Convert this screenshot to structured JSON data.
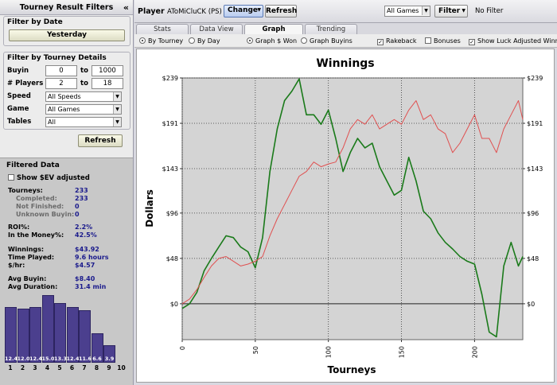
{
  "left_panel": {
    "title": "Tourney Result Filters",
    "filter_by_date": {
      "title": "Filter by Date",
      "button": "Yesterday"
    },
    "filter_by_tourney": {
      "title": "Filter by Tourney Details",
      "buyin": {
        "label": "Buyin",
        "min": "0",
        "to": "to",
        "max": "1000"
      },
      "players": {
        "label": "# Players",
        "min": "2",
        "to": "to",
        "max": "18"
      },
      "speed": {
        "label": "Speed",
        "value": "All Speeds"
      },
      "game": {
        "label": "Game",
        "value": "All Games"
      },
      "tables": {
        "label": "Tables",
        "value": "All"
      }
    },
    "refresh": "Refresh",
    "filtered_data": {
      "title": "Filtered Data",
      "show_ev": "Show $EV adjusted",
      "stats": [
        {
          "label": "Tourneys:",
          "value": "233",
          "sub": false
        },
        {
          "label": "Completed:",
          "value": "233",
          "sub": true
        },
        {
          "label": "Not Finished:",
          "value": "0",
          "sub": true
        },
        {
          "label": "Unknown Buyin:",
          "value": "0",
          "sub": true
        },
        {
          "label": "ROI%:",
          "value": "2.2%",
          "sub": false
        },
        {
          "label": "In the Money%:",
          "value": "42.5%",
          "sub": false
        },
        {
          "label": "Winnings:",
          "value": "$43.92",
          "sub": false
        },
        {
          "label": "Time Played:",
          "value": "9.6  hours",
          "sub": false
        },
        {
          "label": "$/hr:",
          "value": "$4.57",
          "sub": false
        },
        {
          "label": "Avg Buyin:",
          "value": "$8.40",
          "sub": false
        },
        {
          "label": "Avg Duration:",
          "value": "31.4  min",
          "sub": false
        }
      ],
      "histogram": {
        "labels": [
          "1",
          "2",
          "3",
          "4",
          "5",
          "6",
          "7",
          "8",
          "9",
          "10"
        ],
        "values": [
          12.4,
          12.0,
          12.4,
          15.0,
          13.3,
          12.4,
          11.6,
          6.6,
          3.9,
          0
        ],
        "value_text": [
          "12.4",
          "12.0",
          "12.4",
          "15.0",
          "13.3",
          "12.4",
          "11.6",
          "6.6",
          "3.9",
          ""
        ],
        "bar_color": "#4b3f8e"
      }
    }
  },
  "topbar": {
    "player_label": "Player",
    "player_name": "AToMiCluCK (PS)",
    "change": "Change",
    "refresh": "Refresh",
    "games": "All Games",
    "filter": "Filter",
    "no_filter": "No Filter"
  },
  "tabs": [
    {
      "label": "Stats",
      "active": false
    },
    {
      "label": "Data View",
      "active": false
    },
    {
      "label": "Graph",
      "active": true
    },
    {
      "label": "Trending",
      "active": false
    }
  ],
  "options": {
    "by_tourney": "By Tourney",
    "by_day": "By Day",
    "graph_won": "Graph $ Won",
    "graph_buyins": "Graph Buyins",
    "rakeback": "Rakeback",
    "bonuses": "Bonuses",
    "luck_adjusted": "Show Luck Adjusted Winn"
  },
  "chart_data": {
    "type": "line",
    "title": "Winnings",
    "xlabel": "Tourneys",
    "ylabel": "Dollars",
    "xlim": [
      0,
      233
    ],
    "ylim": [
      -38,
      239
    ],
    "y_ticks": [
      "$0",
      "$48",
      "$96",
      "$143",
      "$191",
      "$239"
    ],
    "y_tick_values": [
      0,
      48,
      96,
      143,
      191,
      239
    ],
    "x_ticks": [
      0,
      50,
      100,
      150,
      200
    ],
    "grid": true,
    "series": [
      {
        "color": "#1a7a1a",
        "x": [
          0,
          5,
          10,
          15,
          20,
          25,
          30,
          35,
          40,
          45,
          50,
          55,
          60,
          65,
          70,
          75,
          80,
          85,
          90,
          95,
          100,
          105,
          110,
          115,
          120,
          125,
          130,
          135,
          140,
          145,
          150,
          155,
          160,
          165,
          170,
          175,
          180,
          185,
          190,
          195,
          200,
          205,
          210,
          215,
          220,
          225,
          230,
          233
        ],
        "y": [
          -5,
          0,
          12,
          35,
          48,
          60,
          72,
          70,
          60,
          55,
          38,
          70,
          140,
          185,
          215,
          225,
          238,
          200,
          200,
          190,
          205,
          175,
          140,
          160,
          175,
          165,
          170,
          145,
          130,
          115,
          120,
          155,
          130,
          98,
          90,
          75,
          65,
          58,
          50,
          45,
          42,
          10,
          -30,
          -35,
          40,
          65,
          40,
          50
        ]
      },
      {
        "color": "#e05050",
        "x": [
          0,
          5,
          10,
          15,
          20,
          25,
          30,
          35,
          40,
          45,
          50,
          55,
          60,
          65,
          70,
          75,
          80,
          85,
          90,
          95,
          100,
          105,
          110,
          115,
          120,
          125,
          130,
          135,
          140,
          145,
          150,
          155,
          160,
          165,
          170,
          175,
          180,
          185,
          190,
          195,
          200,
          205,
          210,
          215,
          220,
          225,
          230,
          233
        ],
        "y": [
          0,
          5,
          15,
          28,
          40,
          48,
          50,
          45,
          40,
          42,
          45,
          50,
          72,
          90,
          105,
          120,
          135,
          140,
          150,
          145,
          148,
          150,
          165,
          185,
          195,
          190,
          200,
          185,
          190,
          195,
          190,
          205,
          215,
          195,
          200,
          185,
          180,
          160,
          170,
          185,
          200,
          175,
          175,
          160,
          185,
          200,
          215,
          195
        ]
      }
    ]
  }
}
